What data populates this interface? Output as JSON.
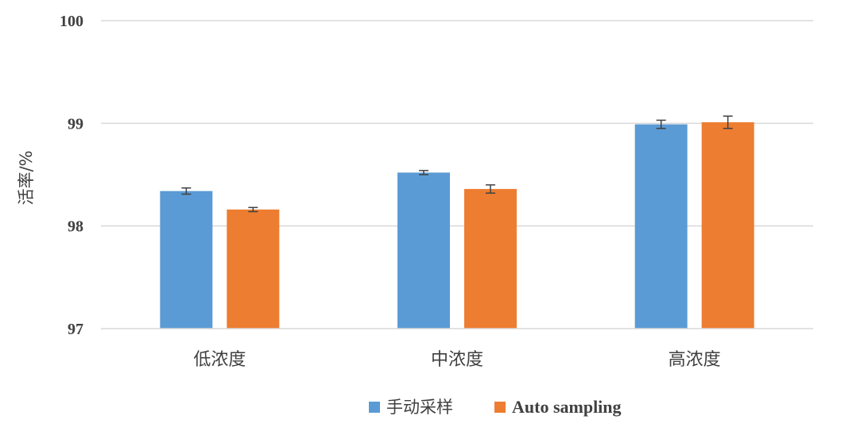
{
  "chart_data": {
    "type": "bar",
    "ylabel": "活率/%",
    "categories": [
      "低浓度",
      "中浓度",
      "高浓度"
    ],
    "ylim": [
      97,
      100
    ],
    "yticks": [
      97,
      98,
      99,
      100
    ],
    "grid": true,
    "legend_placement": "bottom-center",
    "series": [
      {
        "name": "手动采样",
        "color": "#5B9BD5",
        "values": [
          98.34,
          98.52,
          98.99
        ],
        "errors": [
          0.03,
          0.02,
          0.04
        ]
      },
      {
        "name": "Auto sampling",
        "color": "#ED7D31",
        "values": [
          98.16,
          98.36,
          99.01
        ],
        "errors": [
          0.02,
          0.04,
          0.06
        ]
      }
    ]
  }
}
